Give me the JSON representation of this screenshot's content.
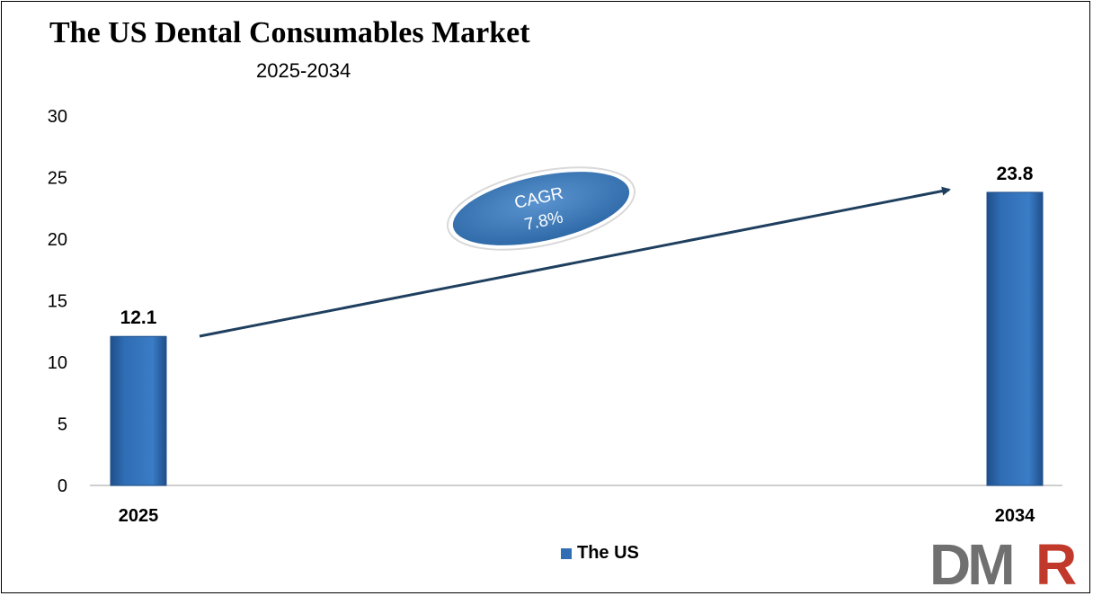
{
  "title": "The US Dental Consumables Market",
  "subtitle": "2025-2034",
  "annotation": {
    "line1": "CAGR",
    "line2": "7.8%"
  },
  "legend": {
    "label": "The US",
    "color": "#2f6db4"
  },
  "logo_text": "DMR",
  "colors": {
    "bar": "#2f6db4",
    "bar_dark": "#1f4f8a",
    "arrow": "#1f3f5f",
    "ellipse": "#3f7fc4",
    "logo_gray": "#707070",
    "logo_red": "#c0392b"
  },
  "chart_data": {
    "type": "bar",
    "categories": [
      "2025",
      "2034"
    ],
    "series": [
      {
        "name": "The US",
        "values": [
          12.1,
          23.8
        ]
      }
    ],
    "data_labels": [
      "12.1",
      "23.8"
    ],
    "ylim": [
      0,
      30
    ],
    "yticks": [
      0,
      5,
      10,
      15,
      20,
      25,
      30
    ],
    "grid": false,
    "legend_position": "bottom"
  }
}
